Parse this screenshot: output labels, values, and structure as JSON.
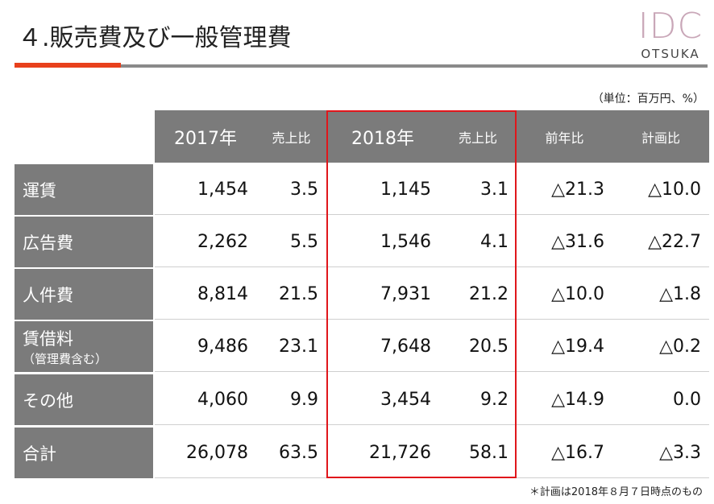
{
  "header": {
    "title": "４.販売費及び一般管理費",
    "logo": {
      "mark": "IDC",
      "name": "OTSUKA"
    }
  },
  "unit": "（単位：百万円、%）",
  "table": {
    "columns": [
      "2017年",
      "売上比",
      "2018年",
      "売上比",
      "前年比",
      "計画比"
    ],
    "rows": [
      {
        "label": "運賃",
        "cells": [
          "1,454",
          "3.5",
          "1,145",
          "3.1",
          "△21.3",
          "△10.0"
        ]
      },
      {
        "label": "広告費",
        "cells": [
          "2,262",
          "5.5",
          "1,546",
          "4.1",
          "△31.6",
          "△22.7"
        ]
      },
      {
        "label": "人件費",
        "cells": [
          "8,814",
          "21.5",
          "7,931",
          "21.2",
          "△10.0",
          "△1.8"
        ]
      },
      {
        "label": "賃借料",
        "note": "（管理費含む）",
        "cells": [
          "9,486",
          "23.1",
          "7,648",
          "20.5",
          "△19.4",
          "△0.2"
        ]
      },
      {
        "label": "その他",
        "cells": [
          "4,060",
          "9.9",
          "3,454",
          "9.2",
          "△14.9",
          "0.0"
        ]
      },
      {
        "label": "合計",
        "cells": [
          "26,078",
          "63.5",
          "21,726",
          "58.1",
          "△16.7",
          "△3.3"
        ]
      }
    ]
  },
  "footnote": "＊計画は2018年８月７日時点のもの"
}
